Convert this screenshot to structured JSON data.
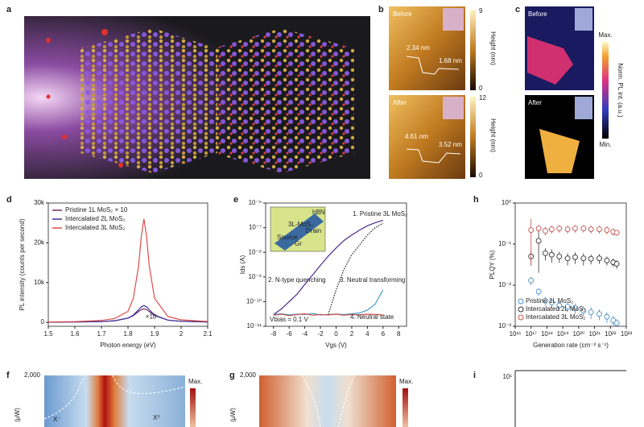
{
  "panel_a": {
    "label": "a"
  },
  "panel_b": {
    "label": "b",
    "before": "Before",
    "after": "After",
    "before_steps": [
      "2.34 nm",
      "1.68 nm"
    ],
    "after_steps": [
      "4.61 nm",
      "3.52 nm"
    ],
    "before_scale": [
      "9",
      "0"
    ],
    "after_scale": [
      "12",
      "0"
    ],
    "scale_title": "Height (nm)"
  },
  "panel_c": {
    "label": "c",
    "before": "Before",
    "after": "After",
    "max": "Max.",
    "min": "Min.",
    "scale_title": "Norm. PL int. (a.u.)"
  },
  "panel_f": {
    "label": "f",
    "ytick": "2,000",
    "ylabel": "(μW)",
    "regions": [
      "X⁻",
      "X⁰"
    ],
    "max": "Max."
  },
  "panel_g": {
    "label": "g",
    "ytick": "2,000",
    "ylabel": "(μW)",
    "max": "Max."
  },
  "panel_i": {
    "label": "i",
    "ytick": "10¹"
  },
  "chart_data": [
    {
      "type": "line",
      "label": "d",
      "xlabel": "Photon energy (eV)",
      "ylabel": "PL intensity (counts per second)",
      "x": [
        1.5,
        1.6,
        1.7,
        1.75,
        1.8,
        1.82,
        1.84,
        1.85,
        1.86,
        1.87,
        1.88,
        1.9,
        1.95,
        2.0,
        2.1
      ],
      "xlim": [
        1.5,
        2.1
      ],
      "xticks": [
        1.5,
        1.6,
        1.7,
        1.8,
        1.9,
        2.0,
        2.1
      ],
      "ylim": [
        -1000,
        30000
      ],
      "yticks": [
        0,
        {
          "value": 10000,
          "label": "10k"
        },
        {
          "value": 20000,
          "label": "20k"
        },
        {
          "value": 30000,
          "label": "30k"
        }
      ],
      "annotation": "×10",
      "legend": "upper left",
      "series": [
        {
          "name": "Pristine 1L MoS₂ × 10",
          "color": "#7a2a5e",
          "values": [
            41,
            79,
            200,
            397,
            1046,
            1700,
            2720,
            3200,
            3400,
            3200,
            2720,
            1700,
            561,
            257,
            92
          ]
        },
        {
          "name": "Intercalated 2L MoS₂",
          "color": "#3b2f9e",
          "values": [
            39,
            75,
            192,
            385,
            1066,
            1818,
            3165,
            3882,
            4200,
            3882,
            3165,
            1818,
            552,
            247,
            87
          ]
        },
        {
          "name": "Intercalated 3L MoS₂",
          "color": "#de4c4a",
          "values": [
            97,
            184,
            474,
            963,
            2755,
            6036,
            14238,
            21540,
            26000,
            21540,
            14238,
            6036,
            1468,
            627,
            216
          ]
        }
      ]
    },
    {
      "type": "line",
      "label": "e",
      "xlabel": "Vgs (V)",
      "ylabel": "Ids (A)",
      "ylog": true,
      "x": [
        -8,
        -7,
        -6,
        -5,
        -4,
        -3,
        -2,
        -1,
        0,
        1,
        2,
        3,
        4,
        5,
        6
      ],
      "xlim": [
        -9,
        9
      ],
      "xticks": [
        -8,
        -6,
        -4,
        -2,
        0,
        2,
        4,
        6,
        8
      ],
      "ylim": [
        1e-11,
        1e-06
      ],
      "yticks": [
        {
          "value": 1e-11,
          "label": "10⁻¹¹"
        },
        {
          "value": 1e-10,
          "label": "10⁻¹⁰"
        },
        {
          "value": 1e-09,
          "label": "10⁻⁹"
        },
        {
          "value": 1e-08,
          "label": "10⁻⁸"
        },
        {
          "value": 1e-07,
          "label": "10⁻⁷"
        },
        {
          "value": 1e-06,
          "label": "10⁻⁶"
        }
      ],
      "annotation": "Vbias = 0.1 V",
      "inset_labels": [
        "hBN",
        "3L-MoS₂",
        "Source",
        "Drain",
        "Gr"
      ],
      "series": [
        {
          "name": "1. Pristine 3L MoS₂",
          "color": "#4a2a8a",
          "values": [
            3e-11,
            5e-11,
            1e-10,
            2e-10,
            5e-10,
            1.2e-09,
            3e-09,
            7e-09,
            1.5e-08,
            3e-08,
            5e-08,
            8e-08,
            1.2e-07,
            1.6e-07,
            2e-07
          ]
        },
        {
          "name": "2. N-type quenching",
          "color": "#222222",
          "dash": true,
          "values": [
            null,
            null,
            null,
            null,
            null,
            null,
            null,
            3e-11,
            3e-10,
            2e-09,
            8e-09,
            2e-08,
            5e-08,
            1e-07,
            1.5e-07
          ]
        },
        {
          "name": "3. Neutral transforming",
          "color": "#4a9ac8",
          "values": [
            3e-11,
            3.2e-11,
            2.9e-11,
            3.1e-11,
            3e-11,
            3.3e-11,
            2.9e-11,
            3e-11,
            3.1e-11,
            3e-11,
            3.2e-11,
            3.5e-11,
            4.5e-11,
            8e-11,
            3e-10
          ]
        },
        {
          "name": "4. Neutral state",
          "color": "#c8504a",
          "values": [
            2.8e-11,
            3.1e-11,
            2.7e-11,
            3e-11,
            3.2e-11,
            2.8e-11,
            3e-11,
            2.9e-11,
            3.1e-11,
            2.8e-11,
            3e-11,
            2.9e-11,
            3.1e-11,
            3e-11,
            2.9e-11
          ]
        }
      ]
    },
    {
      "type": "scatter",
      "label": "h",
      "xlabel": "Generation rate (cm⁻² s⁻¹)",
      "ylabel": "PLQY (%)",
      "xlog": true,
      "ylog": true,
      "legend": "lower left",
      "x": [
        1e+17,
        3e+17,
        8e+17,
        2e+18,
        6e+18,
        2e+19,
        6e+19,
        2e+20,
        6e+20,
        2e+21,
        6e+21,
        1.5e+22,
        2.5e+22
      ],
      "xlim": [
        1e+16,
        1e+23
      ],
      "xticks": [
        {
          "value": 1e+16,
          "label": "10¹⁶"
        },
        {
          "value": 1e+17,
          "label": "10¹⁷"
        },
        {
          "value": 1e+18,
          "label": "10¹⁸"
        },
        {
          "value": 1e+19,
          "label": "10¹⁹"
        },
        {
          "value": 1e+20,
          "label": "10²⁰"
        },
        {
          "value": 1e+21,
          "label": "10²¹"
        },
        {
          "value": 1e+22,
          "label": "10²²"
        },
        {
          "value": 1e+23,
          "label": "10²³"
        }
      ],
      "ylim": [
        0.001,
        1
      ],
      "yticks": [
        {
          "value": 0.001,
          "label": "10⁻³"
        },
        {
          "value": 0.01,
          "label": "10⁻²"
        },
        {
          "value": 0.1,
          "label": "10⁻¹"
        },
        {
          "value": 1,
          "label": "10⁰"
        }
      ],
      "series": [
        {
          "name": "Pristine 1L MoS₂",
          "color": "#4a90c8",
          "values": [
            0.013,
            0.007,
            0.0042,
            0.0038,
            0.0032,
            0.003,
            0.0028,
            0.0024,
            0.0022,
            0.002,
            0.0017,
            0.0014,
            0.0012
          ],
          "errors": [
            0.003,
            0.0015,
            0.001,
            0.001,
            0.0008,
            0.0008,
            0.0008,
            0.0007,
            0.0007,
            0.0006,
            0.0005,
            0.0004,
            0.0003
          ]
        },
        {
          "name": "Intercalated 2L MoS₂",
          "color": "#333333",
          "values": [
            0.05,
            0.12,
            0.06,
            0.055,
            0.05,
            0.045,
            0.048,
            0.045,
            0.044,
            0.045,
            0.04,
            0.036,
            0.033
          ],
          "errors": [
            0.02,
            0.1,
            0.02,
            0.02,
            0.015,
            0.015,
            0.015,
            0.015,
            0.012,
            0.012,
            0.01,
            0.008,
            0.008
          ]
        },
        {
          "name": "Intercalated 3L MoS₂",
          "color": "#c0504d",
          "values": [
            0.22,
            0.24,
            0.21,
            0.23,
            0.24,
            0.23,
            0.24,
            0.24,
            0.23,
            0.23,
            0.22,
            0.2,
            0.19
          ],
          "errors": [
            0.19,
            0.05,
            0.05,
            0.05,
            0.05,
            0.05,
            0.05,
            0.05,
            0.05,
            0.05,
            0.05,
            0.04,
            0.03
          ]
        }
      ]
    }
  ]
}
